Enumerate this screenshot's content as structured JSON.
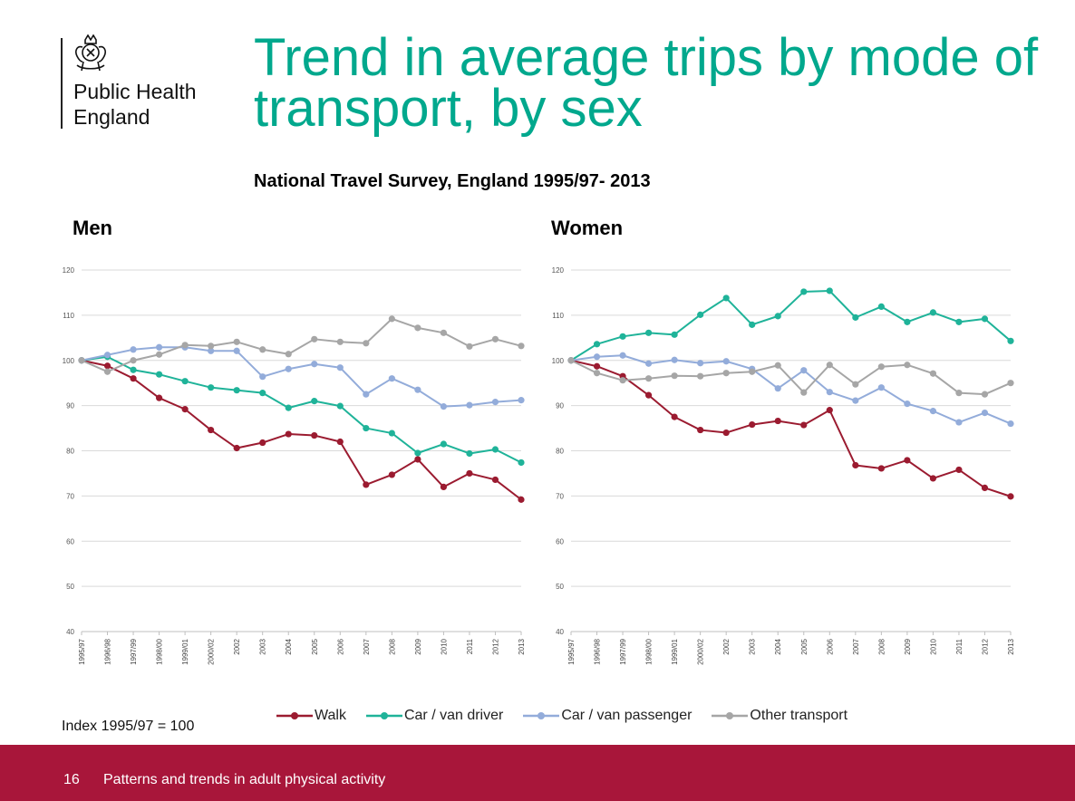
{
  "logo": {
    "line1": "Public Health",
    "line2": "England"
  },
  "slide": {
    "title": "Trend in average trips by mode of transport, by sex",
    "subtitle": "National Travel Survey, England 1995/97- 2013",
    "index_note": "Index 1995/97 = 100",
    "page_number": "16",
    "footer_text": "Patterns and trends in adult physical activity"
  },
  "colors": {
    "walk": "#9b1b30",
    "car_driver": "#1fb399",
    "car_passenger": "#93acda",
    "other": "#a6a6a6",
    "title": "#00a88d",
    "footer": "#a8163a"
  },
  "legend": [
    "Walk",
    "Car / van driver",
    "Car / van passenger",
    "Other transport"
  ],
  "chart_data": [
    {
      "type": "line",
      "title": "Men",
      "categories": [
        "1995/97",
        "1996/98",
        "1997/99",
        "1998/00",
        "1999/01",
        "2000/02",
        "2002",
        "2003",
        "2004",
        "2005",
        "2006",
        "2007",
        "2008",
        "2009",
        "2010",
        "2011",
        "2012",
        "2013"
      ],
      "ylim": [
        40,
        120
      ],
      "yticks": [
        40,
        50,
        60,
        70,
        80,
        90,
        100,
        110,
        120
      ],
      "grid": true,
      "series": [
        {
          "name": "Walk",
          "color": "#9b1b30",
          "values": [
            100,
            98.8,
            96,
            91.7,
            89.2,
            84.6,
            80.6,
            81.8,
            83.7,
            83.4,
            82,
            72.5,
            74.7,
            78.1,
            72,
            75,
            73.6,
            69.2
          ]
        },
        {
          "name": "Car / van driver",
          "color": "#1fb399",
          "values": [
            100,
            100.8,
            97.9,
            96.9,
            95.4,
            94,
            93.4,
            92.8,
            89.5,
            91,
            89.9,
            85,
            83.9,
            79.5,
            81.5,
            79.4,
            80.3,
            77.4
          ]
        },
        {
          "name": "Car / van passenger",
          "color": "#93acda",
          "values": [
            100,
            101.2,
            102.4,
            102.9,
            102.9,
            102.1,
            102.1,
            96.4,
            98.1,
            99.2,
            98.4,
            92.5,
            96,
            93.5,
            89.8,
            90.1,
            90.8,
            91.2
          ]
        },
        {
          "name": "Other transport",
          "color": "#a6a6a6",
          "values": [
            100,
            97.5,
            100,
            101.3,
            103.4,
            103.2,
            104.1,
            102.4,
            101.4,
            104.7,
            104.1,
            103.8,
            109.2,
            107.2,
            106.1,
            103.1,
            104.7,
            103.2
          ]
        }
      ]
    },
    {
      "type": "line",
      "title": "Women",
      "categories": [
        "1995/97",
        "1996/98",
        "1997/99",
        "1998/00",
        "1999/01",
        "2000/02",
        "2002",
        "2003",
        "2004",
        "2005",
        "2006",
        "2007",
        "2008",
        "2009",
        "2010",
        "2011",
        "2012",
        "2013"
      ],
      "ylim": [
        40,
        120
      ],
      "yticks": [
        40,
        50,
        60,
        70,
        80,
        90,
        100,
        110,
        120
      ],
      "grid": true,
      "series": [
        {
          "name": "Walk",
          "color": "#9b1b30",
          "values": [
            100,
            98.7,
            96.5,
            92.3,
            87.5,
            84.6,
            84,
            85.8,
            86.6,
            85.7,
            89,
            76.8,
            76.1,
            77.9,
            73.9,
            75.8,
            71.8,
            69.9
          ]
        },
        {
          "name": "Car / van driver",
          "color": "#1fb399",
          "values": [
            100,
            103.6,
            105.3,
            106.1,
            105.7,
            110.1,
            113.8,
            107.9,
            109.8,
            115.2,
            115.4,
            109.5,
            111.9,
            108.5,
            110.6,
            108.5,
            109.2,
            104.3
          ]
        },
        {
          "name": "Car / van passenger",
          "color": "#93acda",
          "values": [
            100,
            100.8,
            101.1,
            99.3,
            100.1,
            99.4,
            99.8,
            98.1,
            93.8,
            97.8,
            93,
            91.1,
            94,
            90.4,
            88.8,
            86.3,
            88.4,
            86
          ]
        },
        {
          "name": "Other transport",
          "color": "#a6a6a6",
          "values": [
            100,
            97.2,
            95.6,
            96,
            96.6,
            96.5,
            97.2,
            97.5,
            98.9,
            92.9,
            99,
            94.7,
            98.6,
            99,
            97.1,
            92.8,
            92.5,
            95
          ]
        }
      ]
    }
  ]
}
